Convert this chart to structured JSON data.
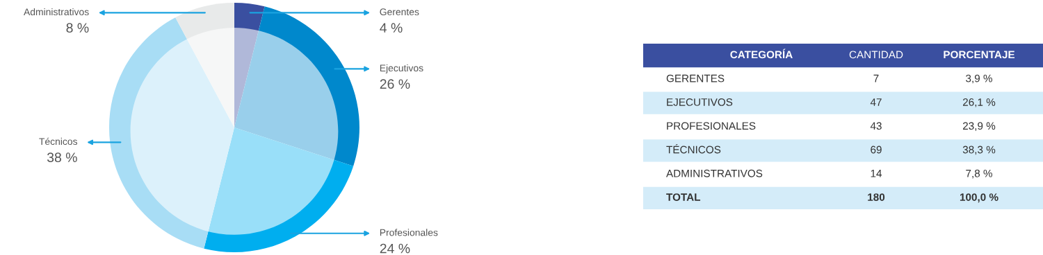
{
  "chart_data": [
    {
      "type": "pie",
      "categories": [
        "Gerentes",
        "Ejecutivos",
        "Profesionales",
        "Técnicos",
        "Administrativos"
      ],
      "values": [
        3.9,
        26.1,
        23.9,
        38.3,
        7.8
      ],
      "value_labels": [
        "4 %",
        "26 %",
        "24 %",
        "38 %",
        "8 %"
      ],
      "colors": [
        "#3a4fa0",
        "#0088cc",
        "#00aeef",
        "#a8ddf5",
        "#e8eaea"
      ]
    },
    {
      "type": "other",
      "legend_title": "CATEGORÍA",
      "data_labels": true,
      "categories": [
        "GERENTES",
        "EJECUTIVOS",
        "PROFESIONALES",
        "TÉCNICOS",
        "ADMINISTRATIVOS",
        "TOTAL"
      ],
      "series": [
        {
          "name": "CANTIDAD",
          "values": [
            7,
            47,
            43,
            69,
            14,
            180
          ]
        },
        {
          "name": "PORCENTAJE",
          "values": [
            3.9,
            26.1,
            23.9,
            38.3,
            7.8,
            100.0
          ],
          "value_labels": [
            "3,9 %",
            "26,1 %",
            "23,9 %",
            "38,3 %",
            "7,8 %",
            "100,0 %"
          ]
        }
      ]
    }
  ]
}
